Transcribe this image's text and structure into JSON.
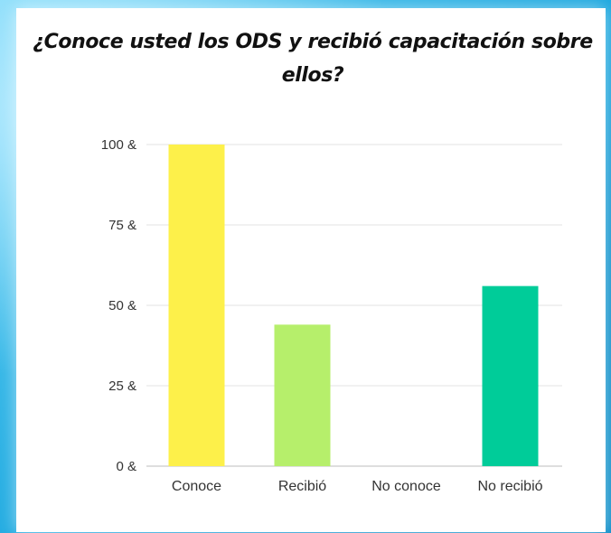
{
  "chart_data": {
    "type": "bar",
    "title": "¿Conoce usted los ODS y recibió capacitación sobre ellos?",
    "categories": [
      "Conoce",
      "Recibió",
      "No conoce",
      "No recibió"
    ],
    "values": [
      100,
      44,
      0,
      56
    ],
    "colors": [
      "#fdf04a",
      "#b6ef6b",
      "#cccccc",
      "#00cc99"
    ],
    "yticks": [
      "0 &",
      "25 &",
      "50 &",
      "75 &",
      "100 &"
    ],
    "ylim": [
      0,
      100
    ],
    "grid": true,
    "xlabel": "",
    "ylabel": ""
  }
}
